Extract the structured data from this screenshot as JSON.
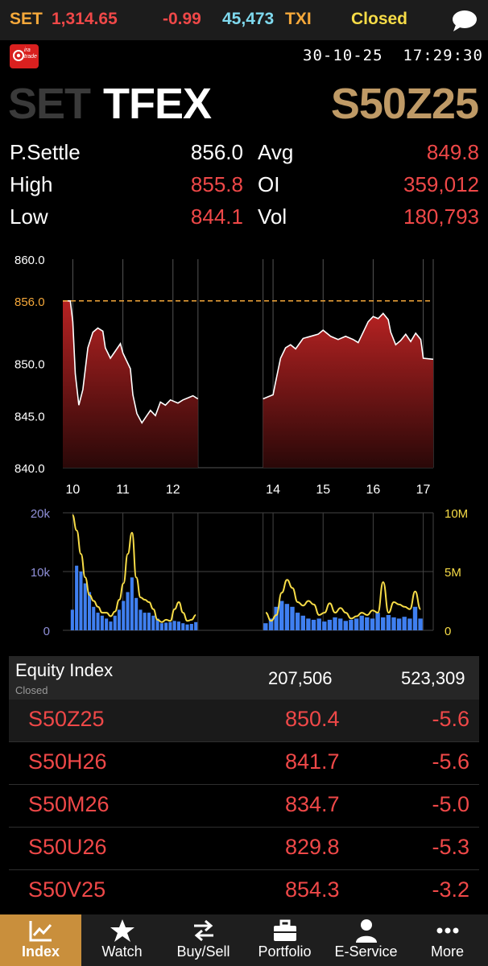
{
  "ticker": {
    "set_label": "SET",
    "set_value": "1,314.65",
    "set_change": "-0.99",
    "volume": "45,473",
    "txi_label": "TXI",
    "status": "Closed"
  },
  "logo_text": "ira trade",
  "datetime": "30-10-25  17:29:30",
  "header": {
    "market_set": "SET",
    "market_tfex": "TFEX",
    "symbol": "S50Z25"
  },
  "stats": {
    "psettle_label": "P.Settle",
    "psettle_value": "856.0",
    "high_label": "High",
    "high_value": "855.8",
    "low_label": "Low",
    "low_value": "844.1",
    "avg_label": "Avg",
    "avg_value": "849.8",
    "oi_label": "OI",
    "oi_value": "359,012",
    "vol_label": "Vol",
    "vol_value": "180,793"
  },
  "chart_data": [
    {
      "type": "area",
      "reference_line": 856.0,
      "reference_label": "856.0",
      "ylim": [
        840,
        860
      ],
      "yticks": [
        "860.0",
        "856.0",
        "850.0",
        "845.0",
        "840.0"
      ],
      "xticks": [
        "10",
        "11",
        "12",
        "14",
        "15",
        "16",
        "17"
      ],
      "x_range": [
        9.8,
        17.2
      ],
      "gap": [
        12.5,
        13.8
      ],
      "series": [
        {
          "segment": 1,
          "points": [
            [
              9.8,
              856.0
            ],
            [
              9.95,
              856.0
            ],
            [
              10.0,
              854.0
            ],
            [
              10.05,
              849.0
            ],
            [
              10.12,
              846.0
            ],
            [
              10.2,
              847.5
            ],
            [
              10.3,
              851.5
            ],
            [
              10.4,
              853.0
            ],
            [
              10.5,
              853.4
            ],
            [
              10.6,
              853.1
            ],
            [
              10.65,
              851.5
            ],
            [
              10.75,
              850.5
            ],
            [
              10.85,
              851.2
            ],
            [
              10.95,
              851.9
            ],
            [
              11.0,
              851.0
            ],
            [
              11.05,
              850.5
            ],
            [
              11.15,
              849.5
            ],
            [
              11.2,
              847.0
            ],
            [
              11.28,
              845.2
            ],
            [
              11.38,
              844.3
            ],
            [
              11.45,
              844.8
            ],
            [
              11.55,
              845.5
            ],
            [
              11.65,
              845.0
            ],
            [
              11.75,
              846.3
            ],
            [
              11.85,
              846.0
            ],
            [
              11.95,
              846.5
            ],
            [
              12.1,
              846.2
            ],
            [
              12.2,
              846.5
            ],
            [
              12.3,
              846.7
            ],
            [
              12.4,
              846.9
            ],
            [
              12.5,
              846.6
            ]
          ]
        },
        {
          "segment": 2,
          "points": [
            [
              13.8,
              846.6
            ],
            [
              13.9,
              846.8
            ],
            [
              14.0,
              847.0
            ],
            [
              14.05,
              848.2
            ],
            [
              14.15,
              850.5
            ],
            [
              14.25,
              851.5
            ],
            [
              14.35,
              851.8
            ],
            [
              14.45,
              851.4
            ],
            [
              14.6,
              852.4
            ],
            [
              14.75,
              852.6
            ],
            [
              14.9,
              852.8
            ],
            [
              15.0,
              853.2
            ],
            [
              15.15,
              852.6
            ],
            [
              15.3,
              852.3
            ],
            [
              15.45,
              852.6
            ],
            [
              15.6,
              852.3
            ],
            [
              15.7,
              852.0
            ],
            [
              15.8,
              853.0
            ],
            [
              15.9,
              854.0
            ],
            [
              16.0,
              854.5
            ],
            [
              16.1,
              854.3
            ],
            [
              16.2,
              854.8
            ],
            [
              16.3,
              854.2
            ],
            [
              16.35,
              853.0
            ],
            [
              16.45,
              851.8
            ],
            [
              16.55,
              852.2
            ],
            [
              16.65,
              852.8
            ],
            [
              16.75,
              852.1
            ],
            [
              16.85,
              852.9
            ],
            [
              16.95,
              852.3
            ],
            [
              17.0,
              850.5
            ],
            [
              17.2,
              850.4
            ]
          ]
        }
      ]
    },
    {
      "type": "bar",
      "ylim_left": [
        0,
        20000
      ],
      "yticks_left": [
        "20k",
        "10k",
        "0"
      ],
      "yticks_right": [
        "10M",
        "5M",
        "0"
      ],
      "bars_segment1": [
        3500,
        11000,
        10000,
        8000,
        6500,
        4000,
        3000,
        2500,
        2000,
        1500,
        2500,
        3500,
        5000,
        6500,
        9000,
        5500,
        3500,
        3000,
        3000,
        2500,
        2000,
        1200,
        1300,
        1400,
        1600,
        1500,
        1200,
        1000,
        1100,
        1400
      ],
      "bars_segment2": [
        1200,
        2000,
        4000,
        5000,
        4500,
        4000,
        3000,
        2500,
        2000,
        1800,
        2000,
        1500,
        1800,
        2200,
        2000,
        1600,
        1800,
        2000,
        2500,
        2200,
        2000,
        3000,
        2200,
        2600,
        2200,
        2000,
        2300,
        2000,
        4000,
        2000
      ],
      "line_segment1": [
        9.8,
        8.5,
        6.5,
        4.5,
        3.0,
        2.5,
        2.0,
        1.5,
        1.5,
        1.2,
        1.6,
        2.6,
        4.0,
        6.5,
        8.3,
        4.5,
        2.8,
        2.6,
        2.4,
        1.8,
        0.9,
        0.7,
        0.9,
        0.8,
        1.8,
        2.4,
        1.5,
        0.8,
        0.9,
        1.3
      ],
      "line_segment2": [
        1.5,
        0.8,
        1.3,
        3.2,
        4.3,
        3.6,
        2.4,
        2.1,
        2.5,
        2.2,
        1.3,
        1.5,
        2.3,
        1.5,
        1.9,
        1.5,
        1.0,
        1.2,
        1.5,
        1.3,
        1.7,
        1.5,
        4.1,
        1.5,
        2.4,
        2.2,
        2.0,
        1.8,
        3.3,
        1.8
      ]
    }
  ],
  "table": {
    "group_name": "Equity Index",
    "group_status": "Closed",
    "group_vol": "207,506",
    "group_oi": "523,309",
    "rows": [
      {
        "symbol": "S50Z25",
        "last": "850.4",
        "change": "-5.6"
      },
      {
        "symbol": "S50H26",
        "last": "841.7",
        "change": "-5.6"
      },
      {
        "symbol": "S50M26",
        "last": "834.7",
        "change": "-5.0"
      },
      {
        "symbol": "S50U26",
        "last": "829.8",
        "change": "-5.3"
      },
      {
        "symbol": "S50V25",
        "last": "854.3",
        "change": "-3.2"
      }
    ]
  },
  "nav": [
    {
      "label": "Index",
      "icon": "chart-line-icon"
    },
    {
      "label": "Watch",
      "icon": "star-icon"
    },
    {
      "label": "Buy/Sell",
      "icon": "swap-arrows-icon"
    },
    {
      "label": "Portfolio",
      "icon": "briefcase-icon"
    },
    {
      "label": "E-Service",
      "icon": "person-icon"
    },
    {
      "label": "More",
      "icon": "more-dots-icon"
    }
  ],
  "colors": {
    "accent_gold": "#f5a83a",
    "symbol_gold": "#bf9a66",
    "red": "#ef4848",
    "cyan": "#7fd9ee",
    "yellow": "#f7dc47",
    "bar_blue": "#3f7ff0"
  }
}
